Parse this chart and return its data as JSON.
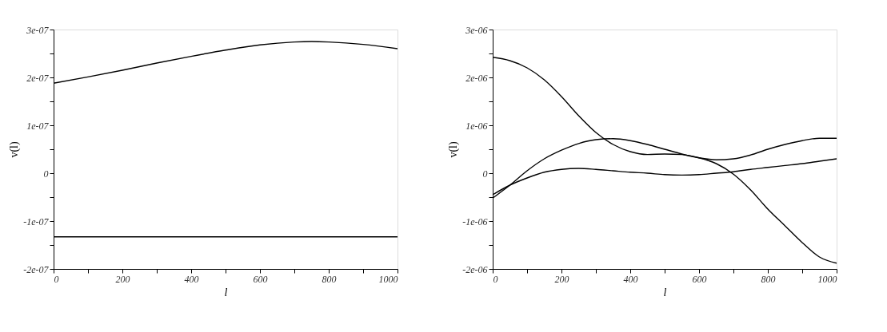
{
  "chart_data": [
    {
      "type": "line",
      "xlabel": "l",
      "ylabel": "v(l)",
      "x": [
        0,
        100,
        200,
        300,
        400,
        500,
        600,
        700,
        750,
        800,
        900,
        1000
      ],
      "series": [
        {
          "color": "#000000",
          "values": [
            1.88e-07,
            2.01e-07,
            2.15e-07,
            2.3e-07,
            2.44e-07,
            2.57e-07,
            2.68e-07,
            2.74e-07,
            2.75e-07,
            2.74e-07,
            2.69e-07,
            2.6e-07
          ]
        },
        {
          "color": "#000000",
          "values": [
            -1.33e-07,
            -1.33e-07,
            -1.33e-07,
            -1.33e-07,
            -1.33e-07,
            -1.33e-07,
            -1.33e-07,
            -1.33e-07,
            -1.33e-07,
            -1.33e-07,
            -1.33e-07,
            -1.33e-07
          ]
        }
      ],
      "xlim": [
        0,
        1000
      ],
      "ylim": [
        -2e-07,
        3e-07
      ],
      "xticks": [
        0,
        {
          "value": 100,
          "label": null
        },
        200,
        {
          "value": 300,
          "label": null
        },
        400,
        {
          "value": 500,
          "label": null
        },
        600,
        {
          "value": 700,
          "label": null
        },
        800,
        {
          "value": 900,
          "label": null
        },
        1000
      ],
      "yticks": [
        {
          "value": -2e-07,
          "label": "-2e-07"
        },
        {
          "value": -1.5e-07,
          "label": null
        },
        {
          "value": -1e-07,
          "label": "-1e-07"
        },
        {
          "value": -5e-08,
          "label": null
        },
        0,
        {
          "value": 5e-08,
          "label": null
        },
        {
          "value": 1e-07,
          "label": "1e-07"
        },
        {
          "value": 1.5e-07,
          "label": null
        },
        {
          "value": 2e-07,
          "label": "2e-07"
        },
        {
          "value": 2.5e-07,
          "label": null
        },
        {
          "value": 3e-07,
          "label": "3e-07"
        }
      ],
      "grid": false,
      "marker": "none",
      "line_style": "solid"
    },
    {
      "type": "line",
      "xlabel": "l",
      "ylabel": "v(l)",
      "x": [
        0,
        50,
        100,
        150,
        200,
        250,
        300,
        350,
        400,
        450,
        500,
        550,
        600,
        650,
        700,
        750,
        800,
        850,
        900,
        950,
        1000
      ],
      "series": [
        {
          "color": "#000000",
          "values": [
            2.42e-06,
            2.35e-06,
            2.2e-06,
            1.95e-06,
            1.6e-06,
            1.2e-06,
            8.5e-07,
            6e-07,
            4.5e-07,
            3.9e-07,
            4e-07,
            3.9e-07,
            3.2e-07,
            2e-07,
            -2e-08,
            -3.5e-07,
            -7.5e-07,
            -1.1e-06,
            -1.45e-06,
            -1.75e-06,
            -1.88e-06
          ]
        },
        {
          "color": "#000000",
          "values": [
            -5.2e-07,
            -2.5e-07,
            5e-08,
            3e-07,
            4.8e-07,
            6.2e-07,
            7e-07,
            7.2e-07,
            6.8e-07,
            6e-07,
            5e-07,
            4e-07,
            3.2e-07,
            2.8e-07,
            3e-07,
            3.8e-07,
            5e-07,
            6e-07,
            6.8e-07,
            7.3e-07,
            7.3e-07
          ]
        },
        {
          "color": "#000000",
          "values": [
            -4.5e-07,
            -2.5e-07,
            -1e-07,
            2e-08,
            8e-08,
            1e-07,
            8e-08,
            5e-08,
            2e-08,
            0.0,
            -3e-08,
            -4e-08,
            -3e-08,
            0.0,
            3e-08,
            8e-08,
            1.2e-07,
            1.6e-07,
            2e-07,
            2.5e-07,
            3e-07
          ]
        }
      ],
      "xlim": [
        0,
        1000
      ],
      "ylim": [
        -2e-06,
        3e-06
      ],
      "xticks": [
        0,
        {
          "value": 100,
          "label": null
        },
        200,
        {
          "value": 300,
          "label": null
        },
        400,
        {
          "value": 500,
          "label": null
        },
        600,
        {
          "value": 700,
          "label": null
        },
        800,
        {
          "value": 900,
          "label": null
        },
        1000
      ],
      "yticks": [
        {
          "value": -2e-06,
          "label": "-2e-06"
        },
        {
          "value": -1.5e-06,
          "label": null
        },
        {
          "value": -1e-06,
          "label": "-1e-06"
        },
        {
          "value": -5e-07,
          "label": null
        },
        0,
        {
          "value": 5e-07,
          "label": null
        },
        {
          "value": 1e-06,
          "label": "1e-06"
        },
        {
          "value": 1.5e-06,
          "label": null
        },
        {
          "value": 2e-06,
          "label": "2e-06"
        },
        {
          "value": 2.5e-06,
          "label": null
        },
        {
          "value": 3e-06,
          "label": "3e-06"
        }
      ],
      "grid": false,
      "marker": "none",
      "line_style": "solid"
    }
  ]
}
